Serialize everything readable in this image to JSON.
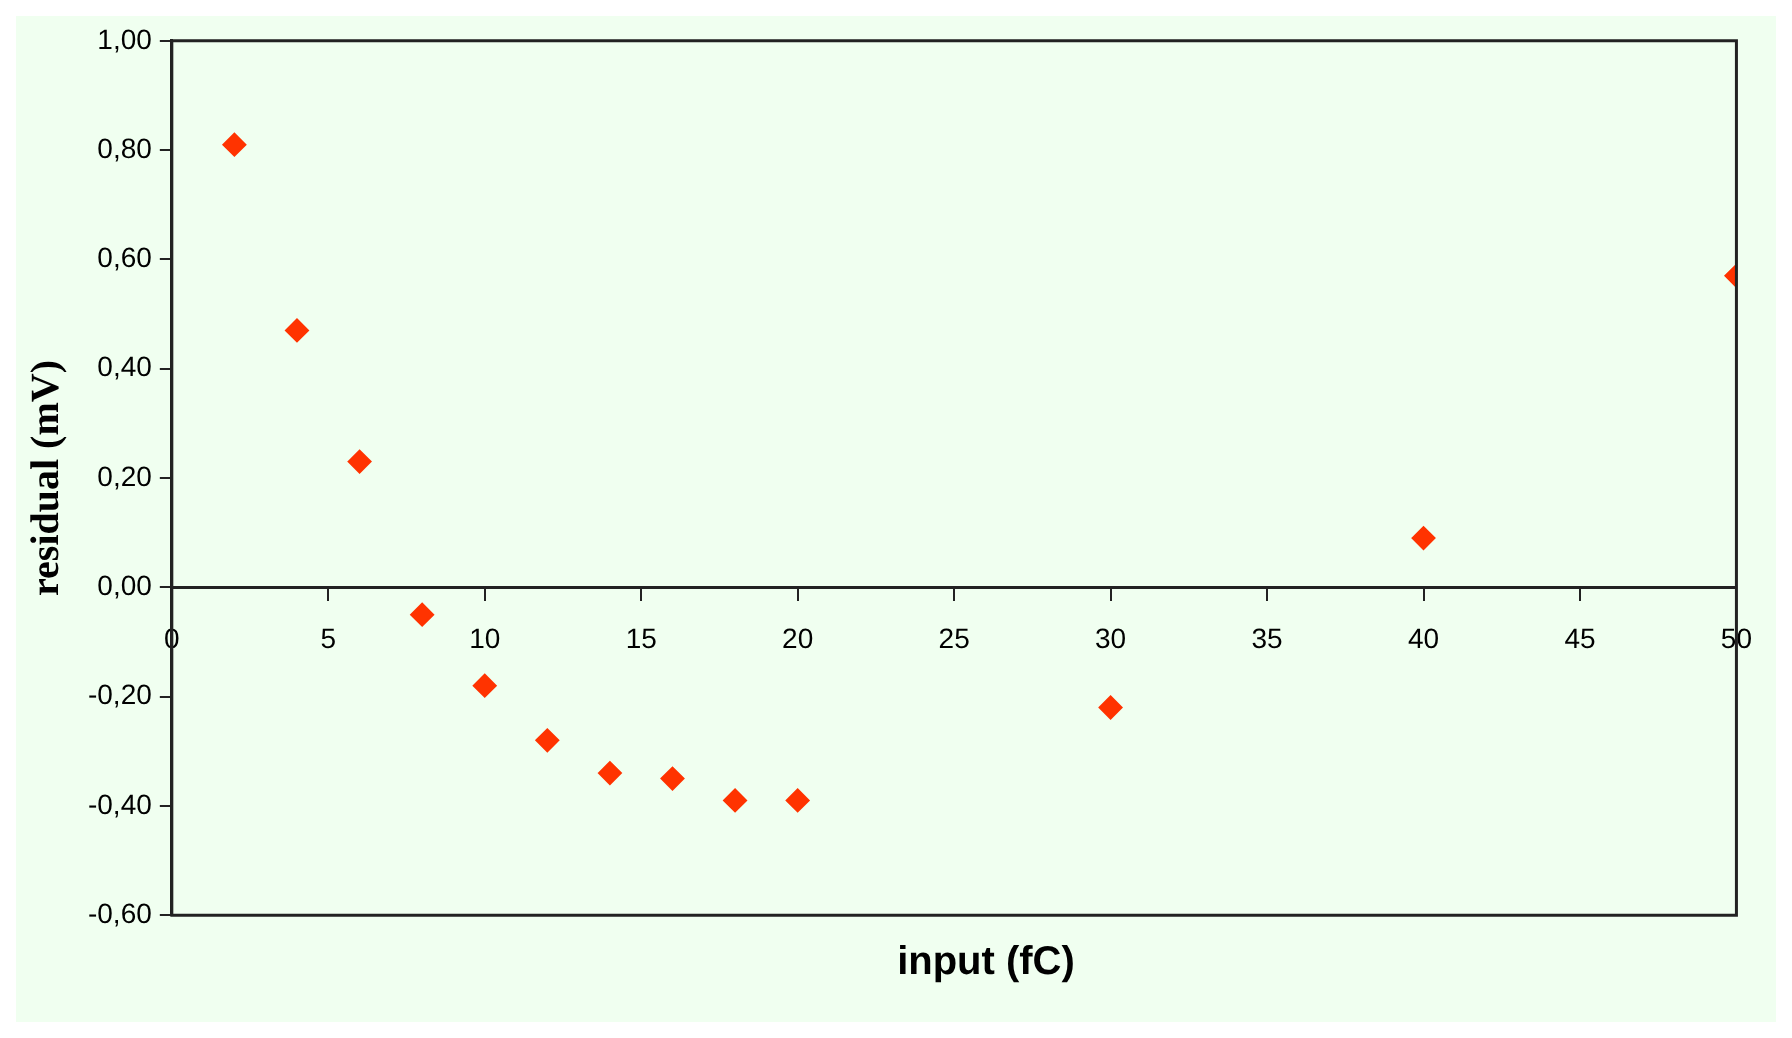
{
  "chart_data": {
    "type": "scatter",
    "xlabel": "input (fC)",
    "ylabel": "residual (mV)",
    "x": [
      2,
      4,
      6,
      8,
      10,
      12,
      14,
      16,
      18,
      20,
      30,
      40,
      50
    ],
    "series": [
      {
        "color": "#ff3300",
        "values": [
          0.81,
          0.47,
          0.23,
          -0.05,
          -0.18,
          -0.28,
          -0.34,
          -0.35,
          -0.39,
          -0.39,
          -0.22,
          0.09,
          0.57
        ]
      }
    ],
    "xlim": [
      0,
      50
    ],
    "xticks": [
      0,
      5,
      10,
      15,
      20,
      25,
      30,
      35,
      40,
      45,
      50
    ],
    "ylim": [
      -0.6,
      1
    ],
    "yticks": [
      {
        "value": -0.6,
        "label": "-0,60"
      },
      {
        "value": -0.4,
        "label": "-0,40"
      },
      {
        "value": -0.2,
        "label": "-0,20"
      },
      {
        "value": 0,
        "label": "0,00"
      },
      {
        "value": 0.2,
        "label": "0,20"
      },
      {
        "value": 0.4,
        "label": "0,40"
      },
      {
        "value": 0.6,
        "label": "0,60"
      },
      {
        "value": 0.8,
        "label": "0,80"
      },
      {
        "value": 1,
        "label": "1,00"
      }
    ],
    "grid": false,
    "legend": false,
    "marker": "diamond"
  }
}
